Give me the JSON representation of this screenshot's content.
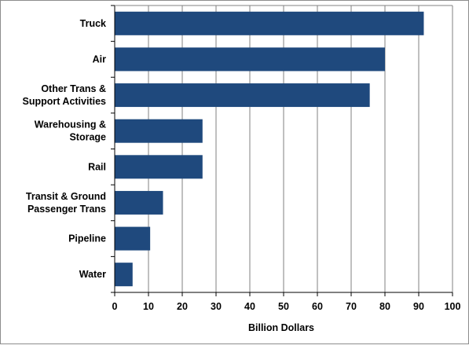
{
  "chart_data": {
    "type": "bar",
    "orientation": "horizontal",
    "categories": [
      "Truck",
      "Air",
      "Other Trans & Support Activities",
      "Warehousing & Storage",
      "Rail",
      "Transit & Ground Passenger Trans",
      "Pipeline",
      "Water"
    ],
    "category_lines": [
      [
        "Truck"
      ],
      [
        "Air"
      ],
      [
        "Other Trans &",
        "Support Activities"
      ],
      [
        "Warehousing &",
        "Storage"
      ],
      [
        "Rail"
      ],
      [
        "Transit & Ground",
        "Passenger Trans"
      ],
      [
        "Pipeline"
      ],
      [
        "Water"
      ]
    ],
    "values": [
      91.5,
      80.0,
      75.5,
      26.0,
      26.0,
      14.3,
      10.5,
      5.3
    ],
    "title": "",
    "xlabel": "Billion Dollars",
    "ylabel": "",
    "xlim": [
      0,
      100
    ],
    "xticks": [
      0,
      10,
      20,
      30,
      40,
      50,
      60,
      70,
      80,
      90,
      100
    ],
    "grid": "vertical",
    "legend": "none",
    "colors": {
      "bar": "#1f497d",
      "gridline": "#808080",
      "axis": "#000000",
      "frame": "#8c8c8c"
    }
  }
}
